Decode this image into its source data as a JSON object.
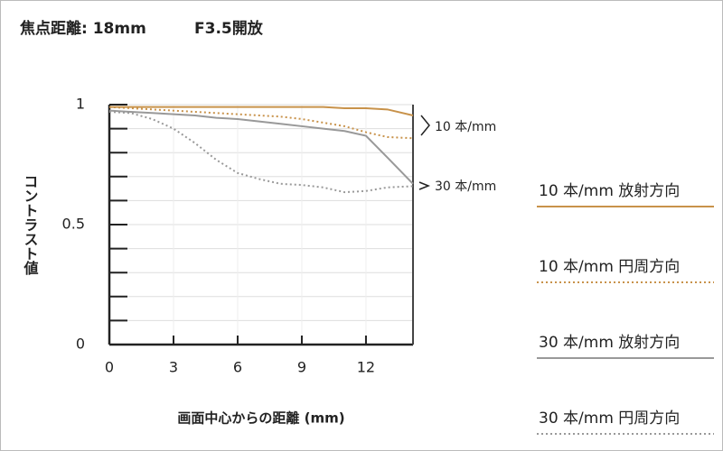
{
  "chart_data": {
    "type": "line",
    "title": "焦点距離: 18mm",
    "subtitle": "F3.5開放",
    "x_label": "画面中心からの距離 (mm)",
    "y_label": "コントラスト値",
    "x": [
      0,
      1,
      2,
      3,
      4,
      5,
      6,
      7,
      8,
      9,
      10,
      11,
      12,
      13,
      14.2
    ],
    "xlim": [
      0,
      14.2
    ],
    "xticks": [
      0,
      3,
      6,
      9,
      12
    ],
    "ylim": [
      0,
      1
    ],
    "yticks": [
      0,
      0.5,
      1
    ],
    "yminorticks": [
      0.1,
      0.2,
      0.3,
      0.4,
      0.6,
      0.7,
      0.8,
      0.9
    ],
    "grid": true,
    "annotations": [
      "10 本/mm",
      "30 本/mm"
    ],
    "series": [
      {
        "name": "10 本/mm 放射方向",
        "color": "#c8924a",
        "style": "solid",
        "values": [
          0.99,
          0.99,
          0.99,
          0.99,
          0.99,
          0.99,
          0.99,
          0.99,
          0.99,
          0.99,
          0.99,
          0.985,
          0.985,
          0.98,
          0.955
        ]
      },
      {
        "name": "10 本/mm 円周方向",
        "color": "#c8924a",
        "style": "dotted",
        "values": [
          0.99,
          0.985,
          0.98,
          0.975,
          0.97,
          0.965,
          0.96,
          0.955,
          0.95,
          0.94,
          0.925,
          0.91,
          0.885,
          0.865,
          0.86
        ]
      },
      {
        "name": "30 本/mm 放射方向",
        "color": "#999999",
        "style": "solid",
        "values": [
          0.975,
          0.97,
          0.965,
          0.96,
          0.955,
          0.945,
          0.94,
          0.93,
          0.92,
          0.91,
          0.9,
          0.89,
          0.87,
          0.78,
          0.67
        ]
      },
      {
        "name": "30 本/mm 円周方向",
        "color": "#999999",
        "style": "dotted",
        "values": [
          0.97,
          0.965,
          0.94,
          0.9,
          0.84,
          0.77,
          0.715,
          0.69,
          0.67,
          0.665,
          0.655,
          0.635,
          0.64,
          0.655,
          0.66
        ]
      }
    ]
  }
}
